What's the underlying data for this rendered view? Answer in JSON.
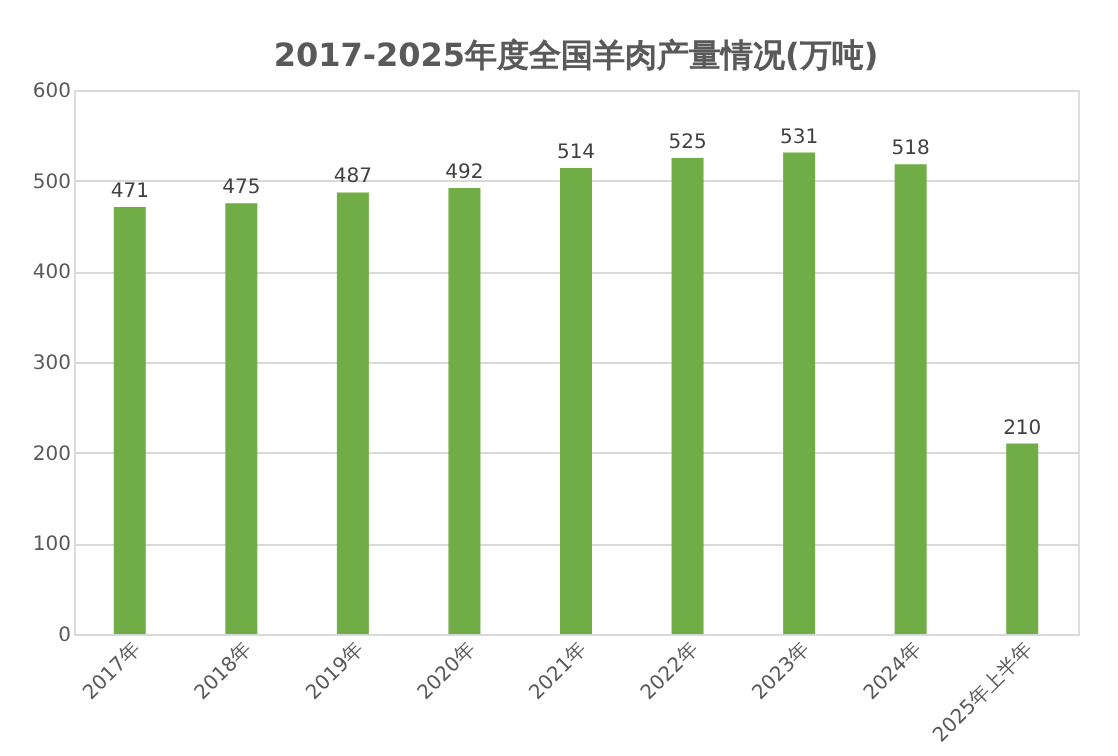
{
  "chart_data": {
    "type": "bar",
    "title": "2017-2025年度全国羊肉产量情况(万吨)",
    "categories": [
      "2017年",
      "2018年",
      "2019年",
      "2020年",
      "2021年",
      "2022年",
      "2023年",
      "2024年",
      "2025年上半年"
    ],
    "values": [
      471,
      475,
      487,
      492,
      514,
      525,
      531,
      518,
      210
    ],
    "color": "#70ad47",
    "ylim": [
      0,
      600
    ],
    "yticks": [
      0,
      100,
      200,
      300,
      400,
      500,
      600
    ],
    "grid": "y",
    "data_labels": true
  }
}
